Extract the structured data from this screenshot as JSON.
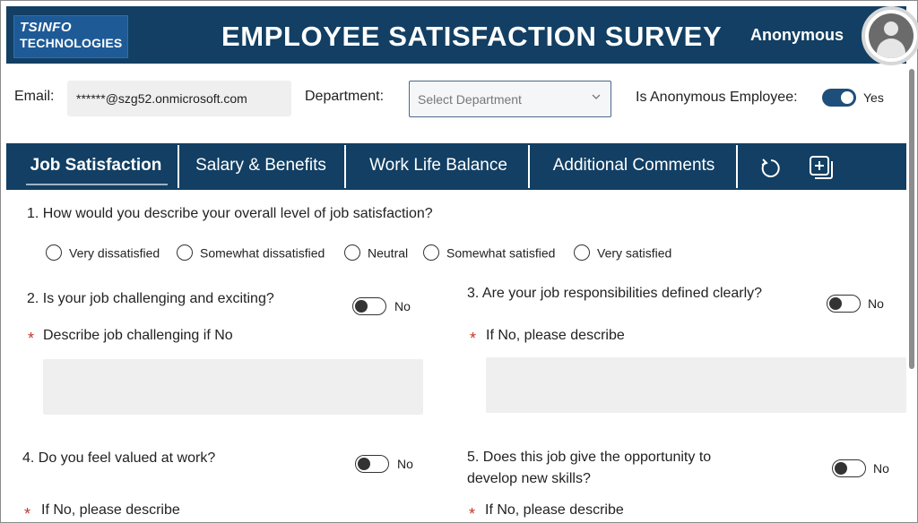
{
  "header": {
    "logo_line1": "TSINFO",
    "logo_line2": "TECHNOLOGIES",
    "title": "EMPLOYEE SATISFACTION SURVEY",
    "user_label": "Anonymous"
  },
  "form": {
    "email_label": "Email:",
    "email_value": "******@szg52.onmicrosoft.com",
    "department_label": "Department:",
    "department_placeholder": "Select Department",
    "anonymous_label": "Is Anonymous Employee:",
    "anonymous_value": "Yes"
  },
  "tabs": [
    {
      "label": "Job Satisfaction"
    },
    {
      "label": "Salary & Benefits"
    },
    {
      "label": "Work Life Balance"
    },
    {
      "label": "Additional Comments"
    }
  ],
  "questions": {
    "q1": "1. How would you describe your overall level of job satisfaction?",
    "q1_options": [
      "Very dissatisfied",
      "Somewhat dissatisfied",
      "Neutral",
      "Somewhat satisfied",
      "Very satisfied"
    ],
    "q2": "2. Is your job challenging and exciting?",
    "q2_toggle": "No",
    "q2_describe": "Describe job challenging if No",
    "q3": "3. Are your job responsibilities defined clearly?",
    "q3_toggle": "No",
    "q3_describe": "If No, please describe",
    "q4": "4. Do you feel valued at work?",
    "q4_toggle": "No",
    "q4_describe": "If No, please describe",
    "q5_line1": "5. Does this job give the opportunity to",
    "q5_line2": "develop new skills?",
    "q5_toggle": "No",
    "q5_describe": "If No, please describe",
    "required_mark": "*"
  },
  "icons": {
    "reset": "reset-icon",
    "add": "add-copy-icon",
    "avatar": "user-avatar-icon",
    "chevron": "chevron-down-icon"
  },
  "colors": {
    "header_bg": "#123f63",
    "logo_bg": "#1e5a96",
    "toggle_on": "#1e4f7a",
    "required": "#c0392b"
  }
}
